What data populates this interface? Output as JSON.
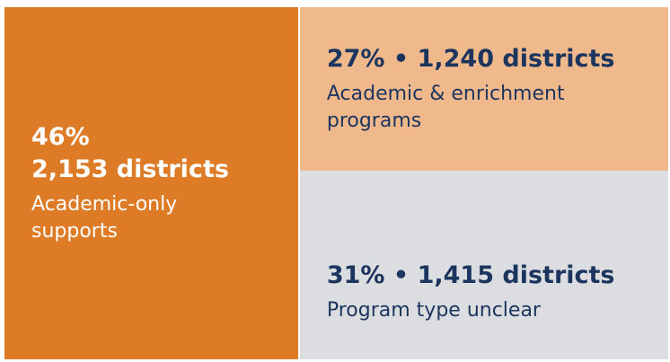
{
  "chart_data": {
    "type": "treemap",
    "categories": [
      "Academic-only supports",
      "Academic & enrichment programs",
      "Program type unclear"
    ],
    "values": [
      46,
      27,
      31
    ],
    "value_labels": [
      "46%",
      "27%",
      "31%"
    ],
    "districts": [
      2153,
      1240,
      1415
    ],
    "district_labels": [
      "2,153 districts",
      "1,240 districts",
      "1,415 districts"
    ],
    "separator": "•",
    "colors": [
      "#de7b26",
      "#f0b98b",
      "#dcdde0"
    ],
    "text_colors": [
      "#ffffff",
      "#1c355e",
      "#1c355e"
    ]
  }
}
